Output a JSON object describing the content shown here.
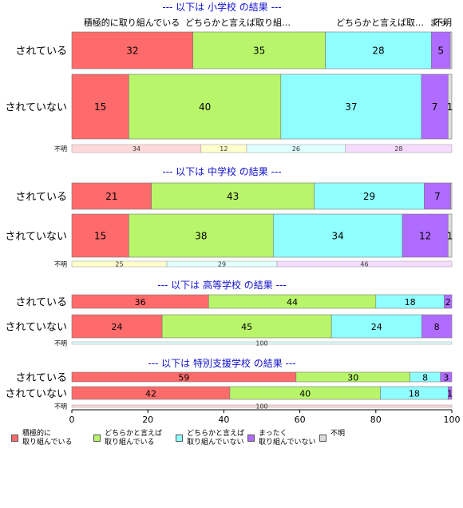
{
  "chart_data": {
    "type": "bar",
    "orientation": "horizontal-stacked-100",
    "xlim": [
      0,
      100
    ],
    "x_ticks": [
      "0",
      "20",
      "40",
      "60",
      "80",
      "100"
    ],
    "legend": {
      "position": "bottom-left",
      "entries": [
        {
          "key": "a",
          "label": "積極的に\n取り組んでいる",
          "color": "#ff6b6b"
        },
        {
          "key": "b",
          "label": "どちらかと言えば\n取り組んでいる",
          "color": "#b8f56a"
        },
        {
          "key": "c",
          "label": "どちらかと言えば\n取り組んでいない",
          "color": "#90ffff"
        },
        {
          "key": "d",
          "label": "まったく\n取り組んでいない",
          "color": "#b06cff"
        },
        {
          "key": "e",
          "label": "不明",
          "color": "#dddddd"
        }
      ]
    },
    "top_column_labels": [
      "積極的に取り組んでいる",
      "どちらかと言えば取り組…",
      "どちらかと言えば取…",
      "まっ",
      "不明"
    ],
    "panels": [
      {
        "title": "--- 以下は 小学校 の結果 ---",
        "rows": [
          {
            "label": "されている",
            "values": [
              32,
              35,
              28,
              5,
              0.4
            ]
          },
          {
            "label": "されていない",
            "values": [
              15,
              40,
              37,
              7,
              1
            ]
          }
        ],
        "unknown": {
          "label": "不明",
          "values": [
            34,
            12,
            26,
            28,
            0
          ],
          "colors": [
            "#ffd9d9",
            "#ffffcc",
            "#e0ffff",
            "#f6dcff",
            "#f0f0f0"
          ]
        }
      },
      {
        "title": "--- 以下は 中学校 の結果 ---",
        "rows": [
          {
            "label": "されている",
            "values": [
              21,
              43,
              29,
              7,
              0.3
            ]
          },
          {
            "label": "されていない",
            "values": [
              15,
              38,
              34,
              12,
              1
            ]
          }
        ],
        "unknown": {
          "label": "不明",
          "values": [
            25,
            29,
            46
          ],
          "colors": [
            "#ffffcc",
            "#e0ffff",
            "#f6dcff"
          ]
        }
      },
      {
        "title": "--- 以下は 高等学校 の結果 ---",
        "rows": [
          {
            "label": "されている",
            "values": [
              36,
              44,
              18,
              2,
              0
            ]
          },
          {
            "label": "されていない",
            "values": [
              24,
              45,
              24,
              8,
              0
            ]
          }
        ],
        "unknown": {
          "label": "不明",
          "values": [
            100
          ],
          "colors": [
            "#e0ffff"
          ]
        }
      },
      {
        "title": "--- 以下は 特別支援学校 の結果 ---",
        "rows": [
          {
            "label": "されている",
            "values": [
              59,
              30,
              8,
              3,
              0
            ]
          },
          {
            "label": "されていない",
            "values": [
              42,
              40,
              18,
              1,
              0
            ]
          }
        ],
        "unknown": {
          "label": "不明",
          "values": [
            100
          ],
          "colors": [
            "#ffd9d9"
          ]
        }
      }
    ]
  }
}
